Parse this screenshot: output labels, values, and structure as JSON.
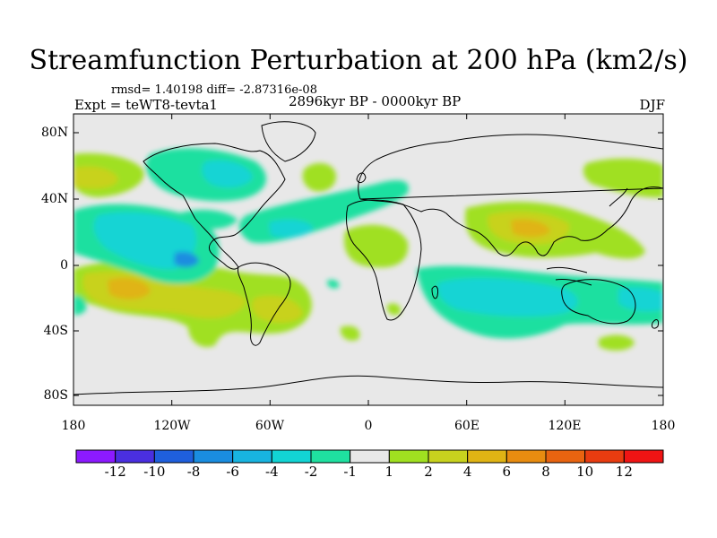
{
  "title": "Streamfunction Perturbation at 200 hPa (km2/s)",
  "stats_line": "rmsd= 1.40198 diff= -2.87316e-08",
  "experiment": "Expt = teWT8-tevta1",
  "period": "2896kyr BP - 0000kyr BP",
  "season": "DJF",
  "lat_labels": [
    "80N",
    "40N",
    "0",
    "40S",
    "80S"
  ],
  "lon_labels": [
    "180",
    "120W",
    "60W",
    "0",
    "60E",
    "120E",
    "180"
  ],
  "colorbar": {
    "labels": [
      "-12",
      "-10",
      "-8",
      "-6",
      "-4",
      "-2",
      "-1",
      "1",
      "2",
      "4",
      "6",
      "8",
      "10",
      "12"
    ],
    "colors": [
      "#8c1aff",
      "#4a2fe0",
      "#1f5fdc",
      "#1a8de0",
      "#18b4e0",
      "#12d4d4",
      "#1fe0a0",
      "#e8e8e8",
      "#a0e020",
      "#c8d21e",
      "#e0b414",
      "#e88c10",
      "#e86410",
      "#e83c10",
      "#f01414"
    ]
  },
  "colors": {
    "background": "#e8e8e8",
    "coast": "#000000"
  }
}
